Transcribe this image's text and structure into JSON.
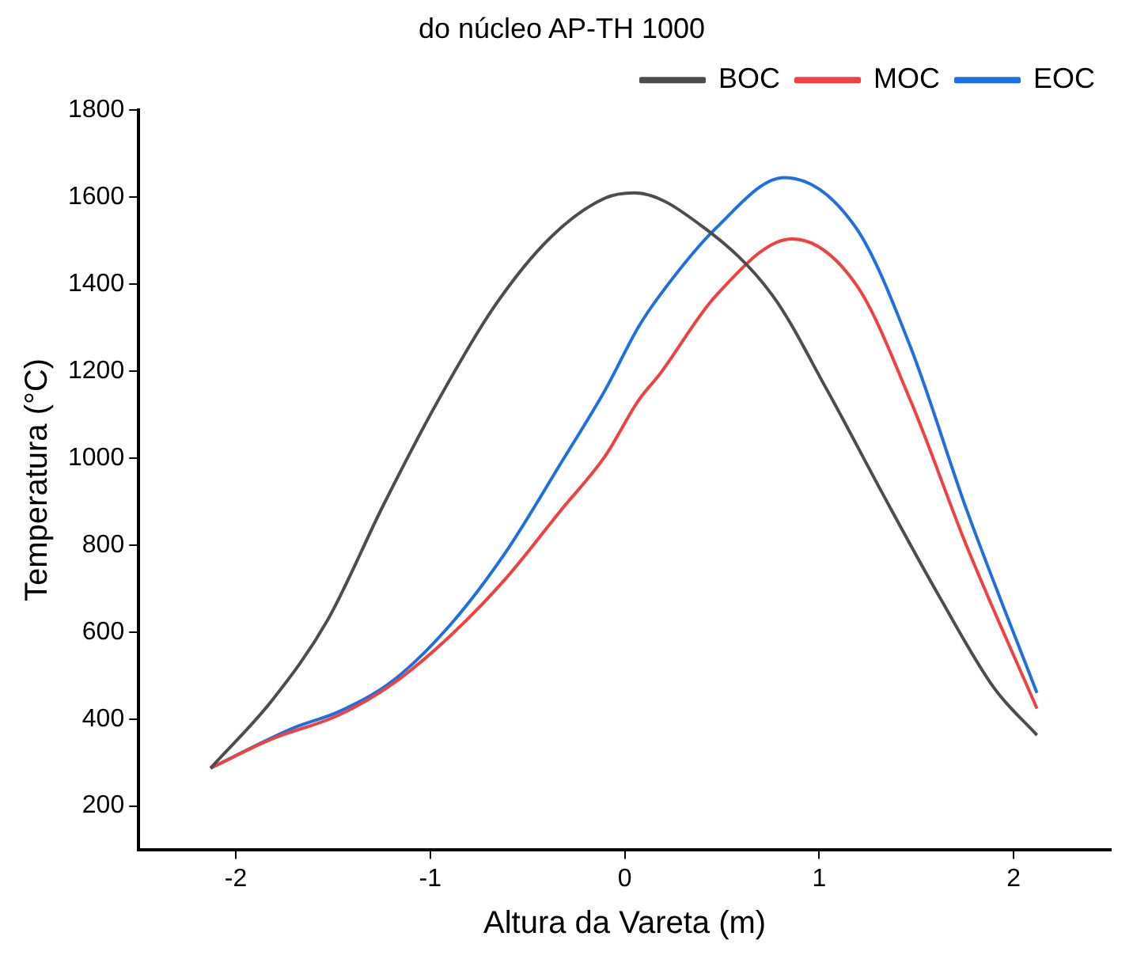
{
  "chart_data": {
    "type": "line",
    "title": "do núcleo AP-TH 1000",
    "xlabel": "Altura da Vareta (m)",
    "ylabel": "Temperatura (°C)",
    "xlim": [
      -2.5,
      2.5
    ],
    "xticks": [
      -2,
      -1,
      0,
      1,
      2
    ],
    "ylim": [
      100,
      1800
    ],
    "yticks": [
      200,
      400,
      600,
      800,
      1000,
      1200,
      1400,
      1600,
      1800
    ],
    "grid": false,
    "legend": "top right",
    "marker": "none",
    "line_style": "solid",
    "series": [
      {
        "name": "BOC",
        "color": "#4d4d4d",
        "x": [
          -2.13,
          -1.81,
          -1.53,
          -1.24,
          -0.96,
          -0.67,
          -0.38,
          -0.1,
          0.05,
          0.41,
          0.76,
          1.04,
          1.33,
          1.61,
          1.9,
          2.12
        ],
        "values": [
          287,
          445,
          626,
          893,
          1132,
          1349,
          1508,
          1598,
          1610,
          1529,
          1374,
          1157,
          915,
          688,
          471,
          363
        ]
      },
      {
        "name": "MOC",
        "color": "#f04040",
        "x": [
          -2.13,
          -1.81,
          -1.47,
          -1.19,
          -0.9,
          -0.61,
          -0.33,
          -0.1,
          0.07,
          0.18,
          0.47,
          0.86,
          1.19,
          1.47,
          1.76,
          2.12
        ],
        "values": [
          287,
          355,
          409,
          482,
          590,
          724,
          879,
          1005,
          1132,
          1193,
          1374,
          1504,
          1399,
          1132,
          796,
          424
        ]
      },
      {
        "name": "EOC",
        "color": "#1f6fe0",
        "x": [
          -2.13,
          -1.7,
          -1.47,
          -1.19,
          -0.9,
          -0.61,
          -0.33,
          -0.1,
          0.07,
          0.18,
          0.47,
          0.82,
          1.19,
          1.47,
          1.76,
          2.12
        ],
        "values": [
          287,
          380,
          417,
          489,
          615,
          785,
          987,
          1157,
          1301,
          1374,
          1529,
          1645,
          1529,
          1255,
          879,
          460
        ]
      }
    ]
  }
}
